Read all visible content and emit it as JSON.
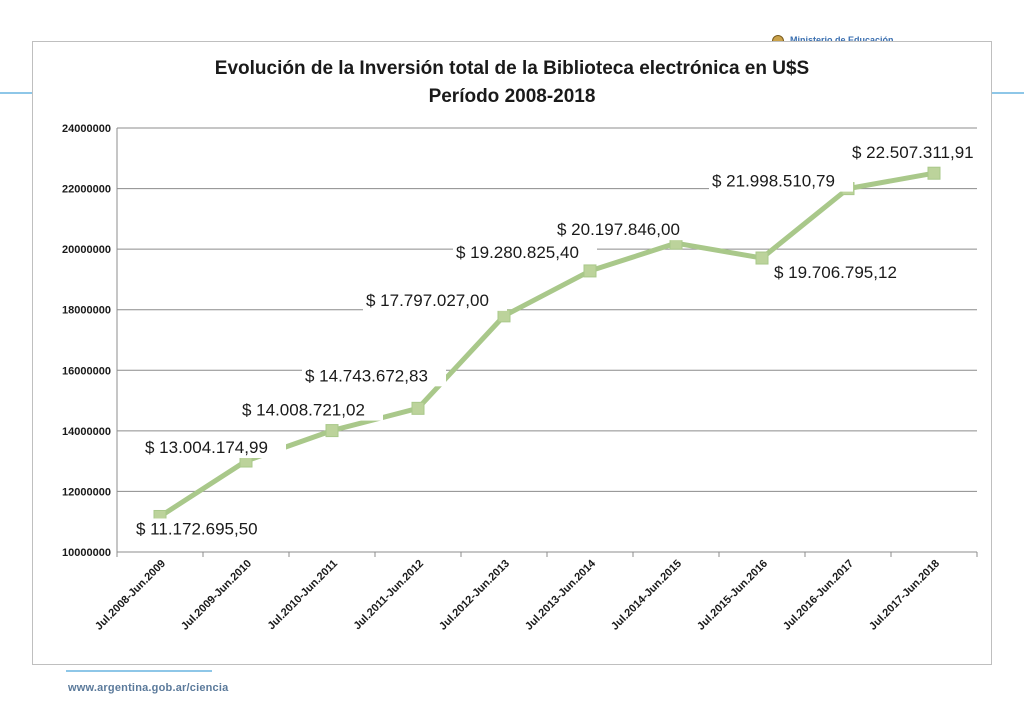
{
  "header": {
    "ministry_text": "Ministerio de Educación",
    "seal_icon": "argentina-seal-icon"
  },
  "footer": {
    "url": "www.argentina.gob.ar/ciencia"
  },
  "colors": {
    "series_line": "#a9c88a",
    "marker": "#bcd39b",
    "gridline": "#8c8c8c",
    "accent_line": "#8ec7e8"
  },
  "chart_data": {
    "type": "line",
    "title": "Evolución de la Inversión total de la Biblioteca electrónica en U$S",
    "subtitle": "Período 2008-2018",
    "xlabel": "",
    "ylabel": "",
    "ylim": [
      10000000,
      24000000
    ],
    "yticks": [
      10000000,
      12000000,
      14000000,
      16000000,
      18000000,
      20000000,
      22000000,
      24000000
    ],
    "ytick_labels": [
      "10000000",
      "12000000",
      "14000000",
      "16000000",
      "18000000",
      "20000000",
      "22000000",
      "24000000"
    ],
    "grid": true,
    "legend": "none",
    "categories": [
      "Jul.2008-Jun.2009",
      "Jul.2009-Jun.2010",
      "Jul.2010-Jun.2011",
      "Jul.2011-Jun.2012",
      "Jul.2012-Jun.2013",
      "Jul.2013-Jun.2014",
      "Jul.2014-Jun.2015",
      "Jul.2015-Jun.2016",
      "Jul.2016-Jun.2017",
      "Jul.2017-Jun.2018"
    ],
    "series": [
      {
        "values": [
          11172695.5,
          13004174.99,
          14008721.02,
          14743672.83,
          17797027.0,
          19280825.4,
          20197846.0,
          19706795.12,
          21998510.79,
          22507311.91
        ],
        "data_labels": [
          "$ 11.172.695,50",
          "$ 13.004.174,99",
          "$ 14.008.721,02",
          "$ 14.743.672,83",
          "$ 17.797.027,00",
          "$ 19.280.825,40",
          "$ 20.197.846,00",
          "$ 19.706.795,12",
          "$ 21.998.510,79",
          "$ 22.507.311,91"
        ]
      }
    ]
  }
}
